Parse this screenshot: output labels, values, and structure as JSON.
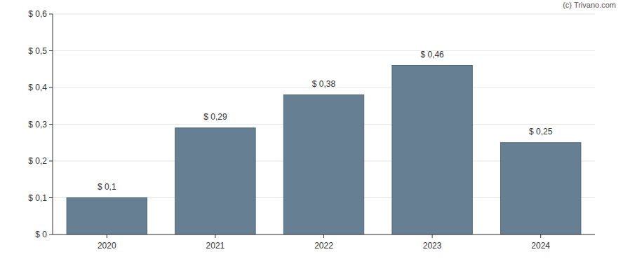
{
  "chart_data": {
    "type": "bar",
    "categories": [
      "2020",
      "2021",
      "2022",
      "2023",
      "2024"
    ],
    "values": [
      0.1,
      0.29,
      0.38,
      0.46,
      0.25
    ],
    "value_labels": [
      "$ 0,1",
      "$ 0,29",
      "$ 0,38",
      "$ 0,46",
      "$ 0,25"
    ],
    "color": "#667f92",
    "ylim": [
      0,
      0.6
    ],
    "yticks": [
      {
        "value": 0,
        "label": "$ 0"
      },
      {
        "value": 0.1,
        "label": "$ 0,1"
      },
      {
        "value": 0.2,
        "label": "$ 0,2"
      },
      {
        "value": 0.3,
        "label": "$ 0,3"
      },
      {
        "value": 0.4,
        "label": "$ 0,4"
      },
      {
        "value": 0.5,
        "label": "$ 0,5"
      },
      {
        "value": 0.6,
        "label": "$ 0,6"
      }
    ],
    "grid": true,
    "data_labels": true,
    "annotations": [
      "(c) Trivano.com"
    ]
  }
}
